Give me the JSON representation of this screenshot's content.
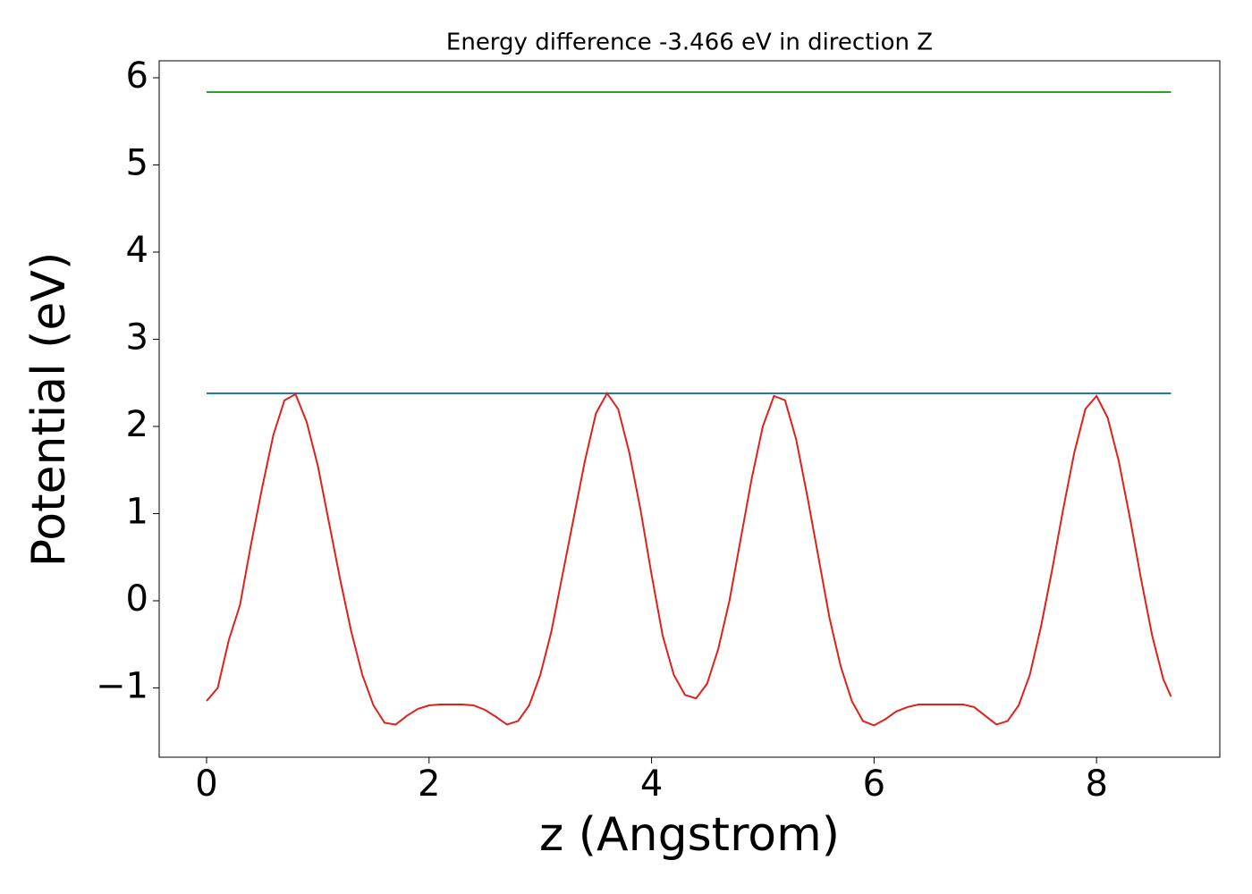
{
  "chart_data": {
    "type": "line",
    "title": "Energy difference -3.466 eV in direction Z",
    "xlabel": "z (Angstrom)",
    "ylabel": "Potential (eV)",
    "xlim": [
      -0.426,
      9.108
    ],
    "ylim": [
      -1.795,
      6.195
    ],
    "xticks": [
      0,
      2,
      4,
      6,
      8
    ],
    "yticks": [
      {
        "value": -1,
        "label": "−1"
      },
      0,
      1,
      2,
      3,
      4,
      5,
      6
    ],
    "series": [
      {
        "color": "#2ca02c",
        "x": [
          0,
          8.67
        ],
        "values": [
          5.836,
          5.836
        ]
      },
      {
        "color": "#1f77b4",
        "x": [
          0,
          8.67
        ],
        "values": [
          2.38,
          2.38
        ]
      },
      {
        "color": "#e0201b",
        "x": [
          0.0,
          0.1,
          0.2,
          0.3,
          0.4,
          0.5,
          0.6,
          0.7,
          0.8,
          0.9,
          1.0,
          1.1,
          1.2,
          1.3,
          1.4,
          1.5,
          1.6,
          1.7,
          1.8,
          1.9,
          2.0,
          2.1,
          2.2,
          2.3,
          2.4,
          2.5,
          2.6,
          2.7,
          2.8,
          2.9,
          3.0,
          3.1,
          3.2,
          3.3,
          3.4,
          3.5,
          3.6,
          3.7,
          3.8,
          3.9,
          4.0,
          4.1,
          4.2,
          4.3,
          4.4,
          4.5,
          4.6,
          4.7,
          4.8,
          4.9,
          5.0,
          5.1,
          5.2,
          5.3,
          5.4,
          5.5,
          5.6,
          5.7,
          5.8,
          5.9,
          6.0,
          6.1,
          6.2,
          6.3,
          6.4,
          6.5,
          6.6,
          6.7,
          6.8,
          6.9,
          7.0,
          7.1,
          7.2,
          7.3,
          7.4,
          7.5,
          7.6,
          7.7,
          7.8,
          7.9,
          8.0,
          8.1,
          8.2,
          8.3,
          8.4,
          8.5,
          8.6,
          8.67
        ],
        "values": [
          -1.15,
          -1.0,
          -0.45,
          -0.05,
          0.65,
          1.3,
          1.9,
          2.3,
          2.37,
          2.05,
          1.55,
          0.9,
          0.25,
          -0.35,
          -0.85,
          -1.2,
          -1.4,
          -1.42,
          -1.32,
          -1.24,
          -1.2,
          -1.19,
          -1.19,
          -1.19,
          -1.2,
          -1.25,
          -1.33,
          -1.42,
          -1.38,
          -1.2,
          -0.85,
          -0.35,
          0.3,
          0.95,
          1.6,
          2.15,
          2.38,
          2.2,
          1.7,
          1.05,
          0.3,
          -0.4,
          -0.85,
          -1.08,
          -1.12,
          -0.95,
          -0.55,
          0.0,
          0.7,
          1.4,
          2.0,
          2.35,
          2.3,
          1.85,
          1.2,
          0.5,
          -0.2,
          -0.75,
          -1.15,
          -1.38,
          -1.43,
          -1.36,
          -1.27,
          -1.22,
          -1.19,
          -1.19,
          -1.19,
          -1.19,
          -1.19,
          -1.22,
          -1.32,
          -1.42,
          -1.38,
          -1.2,
          -0.85,
          -0.3,
          0.35,
          1.05,
          1.7,
          2.2,
          2.35,
          2.1,
          1.6,
          0.95,
          0.25,
          -0.4,
          -0.9,
          -1.1
        ]
      }
    ]
  }
}
